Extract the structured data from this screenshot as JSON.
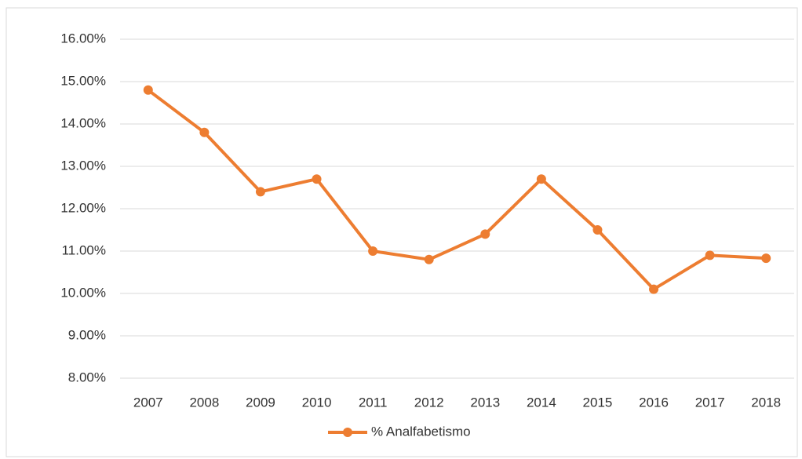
{
  "chart_data": {
    "type": "line",
    "categories": [
      "2007",
      "2008",
      "2009",
      "2010",
      "2011",
      "2012",
      "2013",
      "2014",
      "2015",
      "2016",
      "2017",
      "2018"
    ],
    "series": [
      {
        "name": "% Analfabetismo",
        "color": "#ed7d31",
        "values": [
          14.8,
          13.8,
          12.4,
          12.7,
          11.0,
          10.8,
          11.4,
          12.7,
          11.5,
          10.1,
          10.9,
          10.83
        ]
      }
    ],
    "ylim": [
      8,
      16
    ],
    "yticks": [
      {
        "value": 8,
        "label": "8.00%"
      },
      {
        "value": 9,
        "label": "9.00%"
      },
      {
        "value": 10,
        "label": "10.00%"
      },
      {
        "value": 11,
        "label": "11.00%"
      },
      {
        "value": 12,
        "label": "12.00%"
      },
      {
        "value": 13,
        "label": "13.00%"
      },
      {
        "value": 14,
        "label": "14.00%"
      },
      {
        "value": 15,
        "label": "15.00%"
      },
      {
        "value": 16,
        "label": "16.00%"
      }
    ],
    "grid": true,
    "legend": "bottom"
  }
}
